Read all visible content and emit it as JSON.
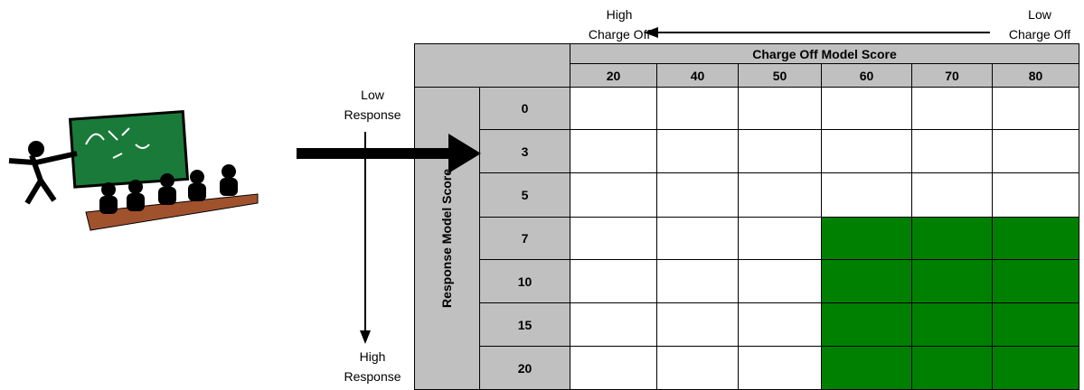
{
  "top_axis": {
    "left_label": "High\nCharge Off",
    "right_label": "Low\nCharge Off"
  },
  "left_axis": {
    "top_label": "Low\nResponse",
    "bottom_label": "High\nResponse"
  },
  "table": {
    "column_header": "Charge Off Model Score",
    "columns": [
      "20",
      "40",
      "50",
      "60",
      "70",
      "80"
    ],
    "row_header": "Response Model Score",
    "rows": [
      "0",
      "3",
      "5",
      "7",
      "10",
      "15",
      "20"
    ]
  }
}
